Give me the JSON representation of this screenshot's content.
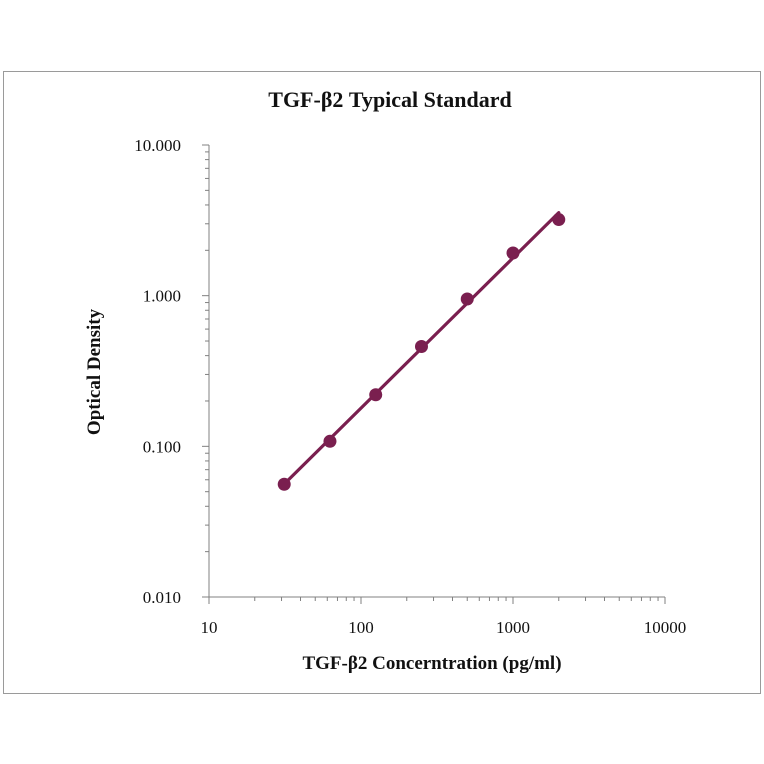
{
  "chart_data": {
    "type": "scatter",
    "title": "TGF-β2 Typical Standard",
    "xlabel": "TGF-β2 Concerntration (pg/ml)",
    "ylabel": "Optical Density",
    "x_scale": "log",
    "y_scale": "log",
    "xlim": [
      10,
      10000
    ],
    "ylim": [
      0.01,
      10
    ],
    "x_ticks": [
      10,
      100,
      1000,
      10000
    ],
    "x_tick_labels": [
      "10",
      "100",
      "1000",
      "10000"
    ],
    "y_ticks": [
      0.01,
      0.1,
      1,
      10
    ],
    "y_tick_labels": [
      "0.010",
      "0.100",
      "1.000",
      "10.000"
    ],
    "grid": false,
    "legend": "none",
    "series": [
      {
        "x": [
          31.25,
          62.5,
          125,
          250,
          500,
          1000,
          2000
        ],
        "y": [
          0.056,
          0.108,
          0.22,
          0.46,
          0.95,
          1.92,
          3.2
        ],
        "fit": "power-law trendline",
        "color": "#7a1f4f"
      }
    ]
  }
}
